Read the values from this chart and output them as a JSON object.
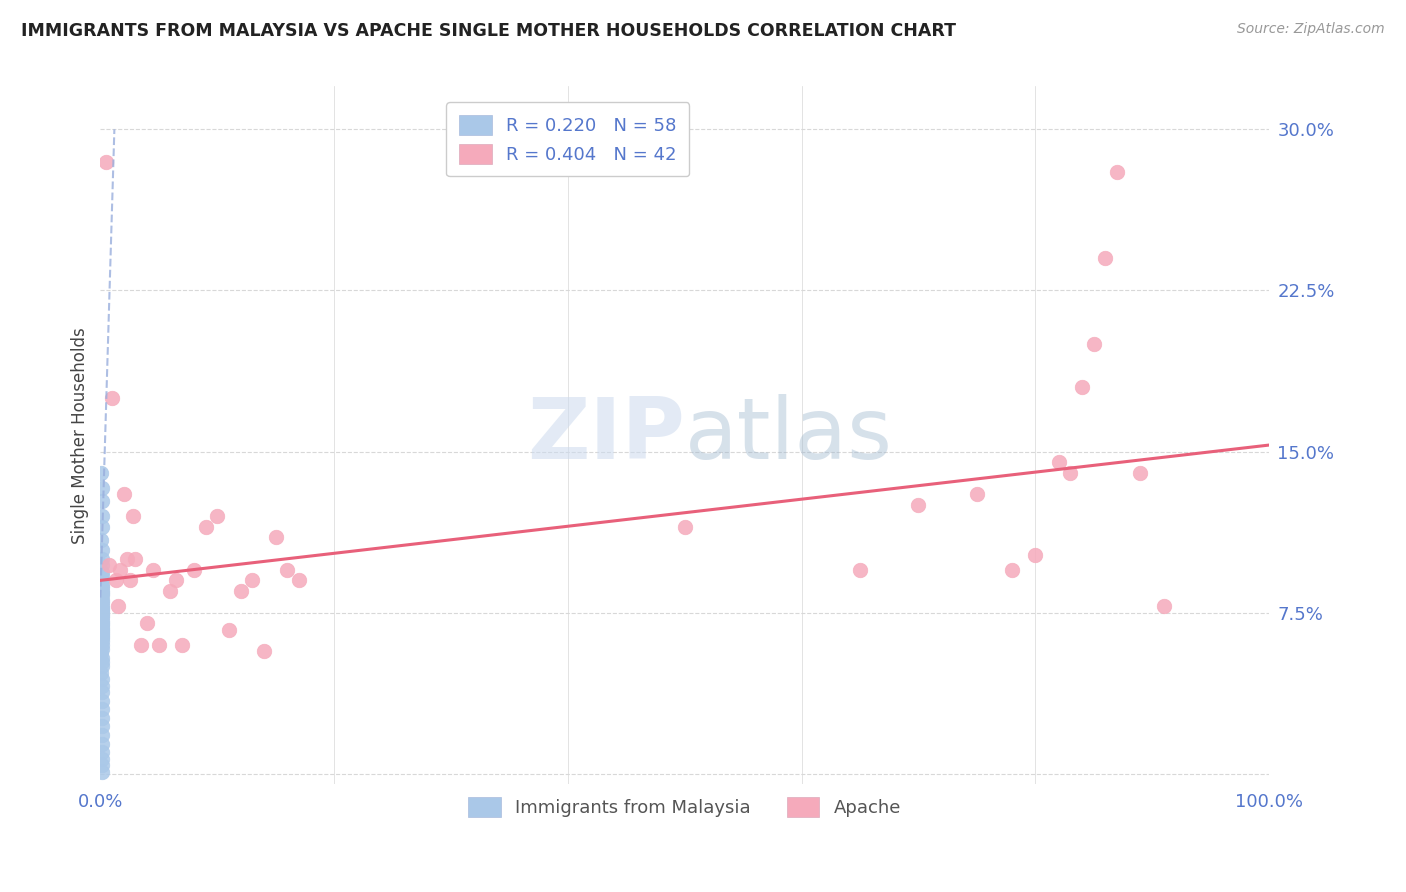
{
  "title": "IMMIGRANTS FROM MALAYSIA VS APACHE SINGLE MOTHER HOUSEHOLDS CORRELATION CHART",
  "source": "Source: ZipAtlas.com",
  "ylabel": "Single Mother Households",
  "yticks": [
    0.0,
    0.075,
    0.15,
    0.225,
    0.3
  ],
  "ytick_labels": [
    "",
    "7.5%",
    "15.0%",
    "22.5%",
    "30.0%"
  ],
  "xtick_labels": [
    "0.0%",
    "100.0%"
  ],
  "xlim": [
    0.0,
    1.0
  ],
  "ylim": [
    -0.005,
    0.32
  ],
  "background_color": "#ffffff",
  "watermark_zip": "ZIP",
  "watermark_atlas": "atlas",
  "grid_color": "#d8d8d8",
  "title_color": "#222222",
  "tick_color": "#5577cc",
  "malaysia_color": "#aac8e8",
  "apache_color": "#f5aabb",
  "malaysia_line_color": "#99aedd",
  "apache_line_color": "#e8607a",
  "malaysia_scatter_x": [
    0.0005,
    0.001,
    0.001,
    0.0015,
    0.001,
    0.0005,
    0.001,
    0.001,
    0.001,
    0.001,
    0.0015,
    0.001,
    0.001,
    0.001,
    0.001,
    0.001,
    0.001,
    0.0008,
    0.001,
    0.001,
    0.0005,
    0.001,
    0.001,
    0.0012,
    0.001,
    0.001,
    0.001,
    0.0008,
    0.001,
    0.001,
    0.001,
    0.001,
    0.001,
    0.0012,
    0.001,
    0.001,
    0.001,
    0.001,
    0.001,
    0.001,
    0.0005,
    0.001,
    0.001,
    0.001,
    0.0008,
    0.001,
    0.001,
    0.001,
    0.001,
    0.0015,
    0.001,
    0.001,
    0.001,
    0.001,
    0.001,
    0.001,
    0.001,
    0.001
  ],
  "malaysia_scatter_y": [
    0.14,
    0.133,
    0.127,
    0.12,
    0.115,
    0.109,
    0.104,
    0.1,
    0.097,
    0.094,
    0.092,
    0.09,
    0.088,
    0.087,
    0.085,
    0.084,
    0.083,
    0.082,
    0.081,
    0.08,
    0.079,
    0.078,
    0.077,
    0.076,
    0.075,
    0.074,
    0.073,
    0.072,
    0.071,
    0.07,
    0.069,
    0.068,
    0.067,
    0.066,
    0.065,
    0.064,
    0.063,
    0.062,
    0.06,
    0.058,
    0.056,
    0.054,
    0.052,
    0.05,
    0.047,
    0.044,
    0.041,
    0.038,
    0.034,
    0.03,
    0.026,
    0.022,
    0.018,
    0.014,
    0.01,
    0.007,
    0.004,
    0.001
  ],
  "apache_scatter_x": [
    0.005,
    0.007,
    0.01,
    0.013,
    0.015,
    0.017,
    0.02,
    0.023,
    0.025,
    0.028,
    0.03,
    0.035,
    0.04,
    0.045,
    0.05,
    0.06,
    0.065,
    0.07,
    0.08,
    0.09,
    0.1,
    0.11,
    0.12,
    0.13,
    0.14,
    0.15,
    0.16,
    0.17,
    0.5,
    0.65,
    0.7,
    0.75,
    0.78,
    0.8,
    0.82,
    0.83,
    0.84,
    0.85,
    0.86,
    0.87,
    0.89,
    0.91
  ],
  "apache_scatter_y": [
    0.285,
    0.097,
    0.175,
    0.09,
    0.078,
    0.095,
    0.13,
    0.1,
    0.09,
    0.12,
    0.1,
    0.06,
    0.07,
    0.095,
    0.06,
    0.085,
    0.09,
    0.06,
    0.095,
    0.115,
    0.12,
    0.067,
    0.085,
    0.09,
    0.057,
    0.11,
    0.095,
    0.09,
    0.115,
    0.095,
    0.125,
    0.13,
    0.095,
    0.102,
    0.145,
    0.14,
    0.18,
    0.2,
    0.24,
    0.28,
    0.14,
    0.078
  ],
  "malaysia_trend_x": [
    0.0,
    0.012
  ],
  "malaysia_trend_y": [
    0.082,
    0.3
  ],
  "apache_trend_x": [
    0.0,
    1.0
  ],
  "apache_trend_y": [
    0.09,
    0.153
  ],
  "legend1_label_r": "R = 0.220",
  "legend1_label_n": "N = 58",
  "legend2_label_r": "R = 0.404",
  "legend2_label_n": "N = 42",
  "bottom_legend1": "Immigrants from Malaysia",
  "bottom_legend2": "Apache"
}
